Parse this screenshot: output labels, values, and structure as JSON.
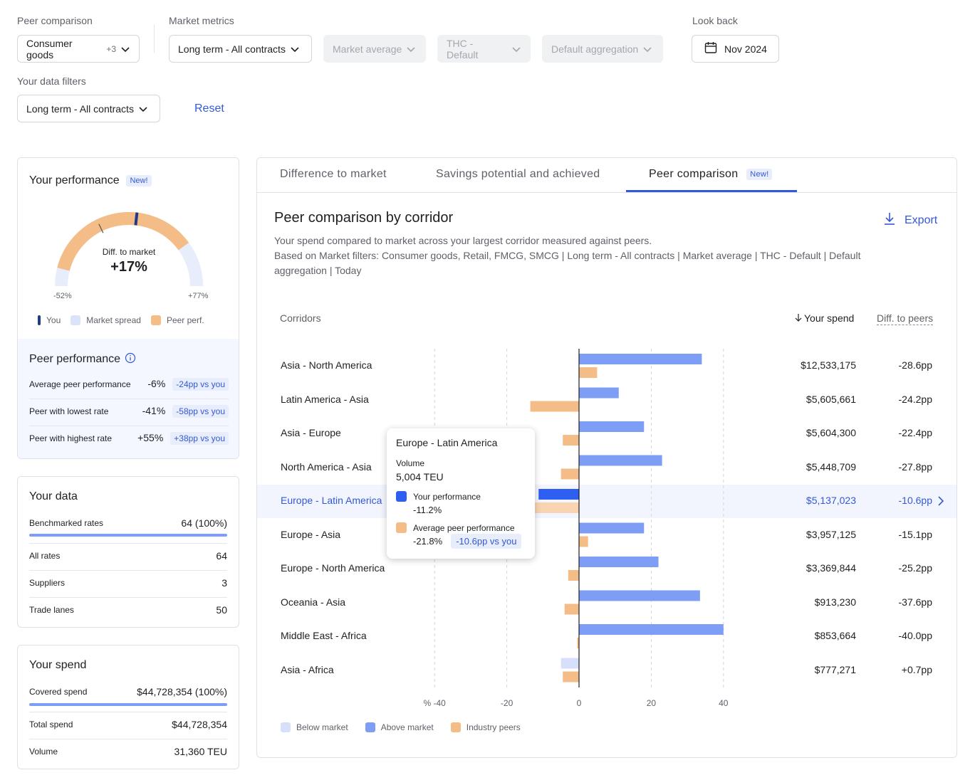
{
  "filters": {
    "peer_comparison_label": "Peer comparison",
    "peer_value": "Consumer goods",
    "peer_plus": "+3",
    "market_metrics_label": "Market metrics",
    "contract_value": "Long term - All contracts",
    "market_average": "Market average",
    "thc": "THC - Default",
    "aggregation": "Default aggregation",
    "look_back_label": "Look back",
    "look_back_value": "Nov 2024",
    "your_data_filters_label": "Your data filters",
    "data_filter_value": "Long term - All contracts",
    "reset": "Reset"
  },
  "performance": {
    "title": "Your performance",
    "badge": "New!",
    "gauge_label": "Diff. to market",
    "gauge_value": "+17%",
    "gauge_min": "-52%",
    "gauge_max": "+77%",
    "gauge": {
      "min": -52,
      "max": 77,
      "you": 17,
      "peer": -6
    },
    "legend": [
      "You",
      "Market spread",
      "Peer perf."
    ],
    "peer_title": "Peer performance",
    "peer_rows": [
      {
        "label": "Average peer performance",
        "value": "-6%",
        "chip": "-24pp vs you"
      },
      {
        "label": "Peer with lowest rate",
        "value": "-41%",
        "chip": "-58pp vs you"
      },
      {
        "label": "Peer with highest rate",
        "value": "+55%",
        "chip": "+38pp vs you"
      }
    ]
  },
  "your_data": {
    "title": "Your data",
    "rows": [
      {
        "label": "Benchmarked rates",
        "value": "64 (100%)"
      },
      {
        "label": "All rates",
        "value": "64"
      },
      {
        "label": "Suppliers",
        "value": "3"
      },
      {
        "label": "Trade lanes",
        "value": "50"
      }
    ]
  },
  "your_spend": {
    "title": "Your spend",
    "rows": [
      {
        "label": "Covered spend",
        "value": "$44,728,354 (100%)"
      },
      {
        "label": "Total spend",
        "value": "$44,728,354"
      },
      {
        "label": "Volume",
        "value": "31,360 TEU"
      }
    ]
  },
  "tabs": [
    {
      "label": "Difference to market"
    },
    {
      "label": "Savings potential and achieved"
    },
    {
      "label": "Peer comparison",
      "badge": "New!"
    }
  ],
  "panel": {
    "title": "Peer comparison by corridor",
    "export": "Export",
    "desc1": "Your spend compared to market across your largest corridor measured against peers.",
    "desc2": "Based on Market filters: Consumer goods, Retail, FMCG, SMCG | Long term - All contracts | Market average | THC - Default | Default",
    "desc3": "aggregation | Today",
    "col_corridors": "Corridors",
    "col_spend": "Your spend",
    "col_diff": "Diff. to peers"
  },
  "chart_data": {
    "type": "bar",
    "orientation": "horizontal",
    "xlim": [
      -40,
      40
    ],
    "x_ticks": [
      "% -40",
      "-20",
      "0",
      "20",
      "40"
    ],
    "categories": [
      "Asia - North America",
      "Latin America - Asia",
      "Asia - Europe",
      "North America - Asia",
      "Europe - Latin America",
      "Europe - Asia",
      "Europe - North America",
      "Oceania - Asia",
      "Middle East - Africa",
      "Asia - Africa"
    ],
    "series": [
      {
        "name": "Your performance",
        "values": [
          34,
          11,
          18,
          23,
          -11.2,
          18,
          22,
          33.5,
          40,
          -5
        ]
      },
      {
        "name": "Average peer performance",
        "values": [
          5,
          -13.5,
          -4.5,
          -5,
          -21.8,
          2.5,
          -3,
          -4,
          -0.5,
          -4.5
        ]
      }
    ],
    "spend": [
      "$12,533,175",
      "$5,605,661",
      "$5,604,300",
      "$5,448,709",
      "$5,137,023",
      "$3,957,125",
      "$3,369,844",
      "$913,230",
      "$853,664",
      "$777,271"
    ],
    "diff": [
      "-28.6pp",
      "-24.2pp",
      "-22.4pp",
      "-27.8pp",
      "-10.6pp",
      "-15.1pp",
      "-25.2pp",
      "-37.6pp",
      "-40.0pp",
      "+0.7pp"
    ],
    "highlight": 4,
    "legend": [
      "Below market",
      "Above market",
      "Industry peers"
    ],
    "colors": {
      "above": "#7e9ef5",
      "below": "#d6e0fb",
      "peers": "#f4bd88",
      "highlight": "#2f5ff0"
    }
  },
  "tooltip": {
    "title": "Europe - Latin America",
    "volume_label": "Volume",
    "volume_value": "5,004 TEU",
    "you_label": "Your performance",
    "you_value": "-11.2%",
    "peer_label": "Average peer performance",
    "peer_value": "-21.8%",
    "peer_chip": "-10.6pp vs you"
  }
}
